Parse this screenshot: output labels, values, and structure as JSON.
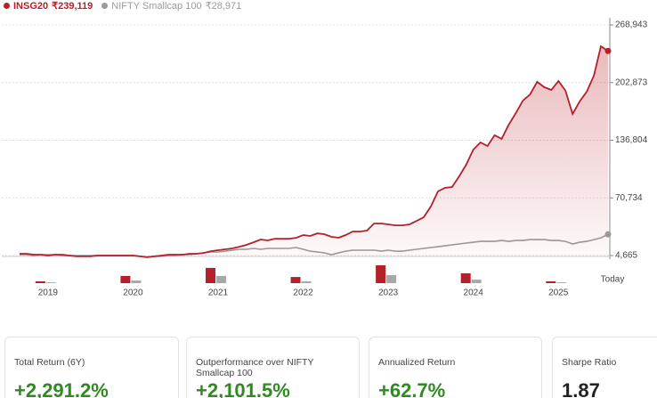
{
  "chart_data": [
    {
      "type": "line",
      "categories": [
        null,
        null,
        null,
        null,
        "2019",
        null,
        null,
        null,
        null,
        null,
        null,
        null,
        null,
        null,
        null,
        null,
        "2020",
        null,
        null,
        null,
        null,
        null,
        null,
        null,
        null,
        null,
        null,
        null,
        "2021",
        null,
        null,
        null,
        null,
        null,
        null,
        null,
        null,
        null,
        null,
        null,
        "2022",
        null,
        null,
        null,
        null,
        null,
        null,
        null,
        null,
        null,
        null,
        null,
        "2023",
        null,
        null,
        null,
        null,
        null,
        null,
        null,
        null,
        null,
        null,
        null,
        "2024",
        null,
        null,
        null,
        null,
        null,
        null,
        null,
        null,
        null,
        null,
        null,
        "2025",
        null,
        null,
        null,
        null,
        null,
        null,
        "Today"
      ],
      "series": [
        {
          "name": "INSG20",
          "color": "#b5202a",
          "values": [
            6700,
            6700,
            5700,
            5700,
            4700,
            5700,
            5700,
            4700,
            3700,
            3700,
            3700,
            4700,
            4700,
            4700,
            4700,
            4700,
            4700,
            3700,
            2700,
            3700,
            4700,
            5700,
            5700,
            5700,
            6700,
            6700,
            7700,
            9700,
            10800,
            11800,
            12800,
            14800,
            16900,
            19900,
            23000,
            22000,
            24000,
            24000,
            24000,
            25000,
            28100,
            27100,
            30100,
            29100,
            26100,
            25100,
            28100,
            32200,
            32200,
            33200,
            41400,
            41400,
            40400,
            39300,
            39300,
            40400,
            44400,
            48500,
            60800,
            78100,
            82200,
            83200,
            95500,
            108800,
            126100,
            134300,
            130200,
            142500,
            138400,
            154700,
            168000,
            182300,
            189400,
            203700,
            197600,
            194500,
            204700,
            193500,
            166900,
            181200,
            192500,
            210800,
            244500,
            239119
          ],
          "value_labels": [
            null,
            null,
            null,
            null,
            null,
            null,
            null,
            null,
            null,
            null,
            null,
            null,
            null,
            null,
            null,
            null,
            null,
            null,
            null,
            null,
            null,
            null,
            null,
            null,
            null,
            null,
            null,
            null,
            null,
            null,
            null,
            null,
            null,
            null,
            null,
            null,
            null,
            null,
            null,
            null,
            null,
            null,
            null,
            null,
            null,
            null,
            null,
            null,
            null,
            null,
            null,
            null,
            null,
            null,
            null,
            null,
            null,
            null,
            null,
            null,
            null,
            null,
            null,
            null,
            null,
            null,
            null,
            null,
            null,
            null,
            null,
            null,
            null,
            null,
            null,
            null,
            null,
            null,
            null,
            null,
            null,
            null,
            null,
            "₹239,119"
          ]
        },
        {
          "name": "NIFTY Smallcap 100",
          "color": "#9a9a9a",
          "values": [
            5700,
            5700,
            4700,
            5700,
            5700,
            5700,
            4700,
            4700,
            4700,
            4700,
            4700,
            4700,
            4700,
            4700,
            4700,
            4700,
            4700,
            3700,
            2700,
            3700,
            3700,
            4700,
            4700,
            5700,
            5700,
            6700,
            7700,
            8700,
            8700,
            9700,
            10800,
            11800,
            11800,
            12800,
            11800,
            12800,
            12800,
            12800,
            12800,
            13800,
            11800,
            9700,
            8700,
            7700,
            5700,
            7700,
            9700,
            10800,
            10800,
            10800,
            10800,
            9700,
            10800,
            9700,
            9700,
            10800,
            11800,
            12800,
            13800,
            14800,
            15800,
            16900,
            17900,
            18900,
            19900,
            20900,
            20900,
            20900,
            21900,
            20900,
            21900,
            21900,
            22900,
            22900,
            22900,
            21900,
            21900,
            20900,
            17900,
            19900,
            20900,
            22900,
            25000,
            28971
          ],
          "value_labels": [
            null,
            null,
            null,
            null,
            null,
            null,
            null,
            null,
            null,
            null,
            null,
            null,
            null,
            null,
            null,
            null,
            null,
            null,
            null,
            null,
            null,
            null,
            null,
            null,
            null,
            null,
            null,
            null,
            null,
            null,
            null,
            null,
            null,
            null,
            null,
            null,
            null,
            null,
            null,
            null,
            null,
            null,
            null,
            null,
            null,
            null,
            null,
            null,
            null,
            null,
            null,
            null,
            null,
            null,
            null,
            null,
            null,
            null,
            null,
            null,
            null,
            null,
            null,
            null,
            null,
            null,
            null,
            null,
            null,
            null,
            null,
            null,
            null,
            null,
            null,
            null,
            null,
            null,
            null,
            null,
            null,
            null,
            null,
            "₹28,971"
          ]
        }
      ],
      "ylim": [
        4665,
        268943
      ],
      "yticks": [
        {
          "value": 4665,
          "label": "4,665"
        },
        {
          "value": 70734,
          "label": "70,734"
        },
        {
          "value": 136804,
          "label": "136,804"
        },
        {
          "value": 202873,
          "label": "202,873"
        },
        {
          "value": 268943,
          "label": "268,943"
        }
      ],
      "grid": true
    },
    {
      "type": "bar",
      "series": [
        {
          "color": "#b5202a",
          "values": [
            7,
            27,
            57,
            23,
            67,
            37,
            7
          ]
        },
        {
          "color": "#a8a8a8",
          "values": [
            3,
            10,
            27,
            7,
            30,
            13,
            3
          ]
        }
      ]
    }
  ],
  "cards": [
    {
      "label": "Total Return (6Y)",
      "value": "+2,291.2%"
    },
    {
      "label": "Outperformance over NIFTY Smallcap 100",
      "value": "+2,101.5%"
    },
    {
      "label": "Annualized Return",
      "value": "+62.7%"
    },
    {
      "label": "Sharpe Ratio",
      "value": "1.87"
    }
  ]
}
